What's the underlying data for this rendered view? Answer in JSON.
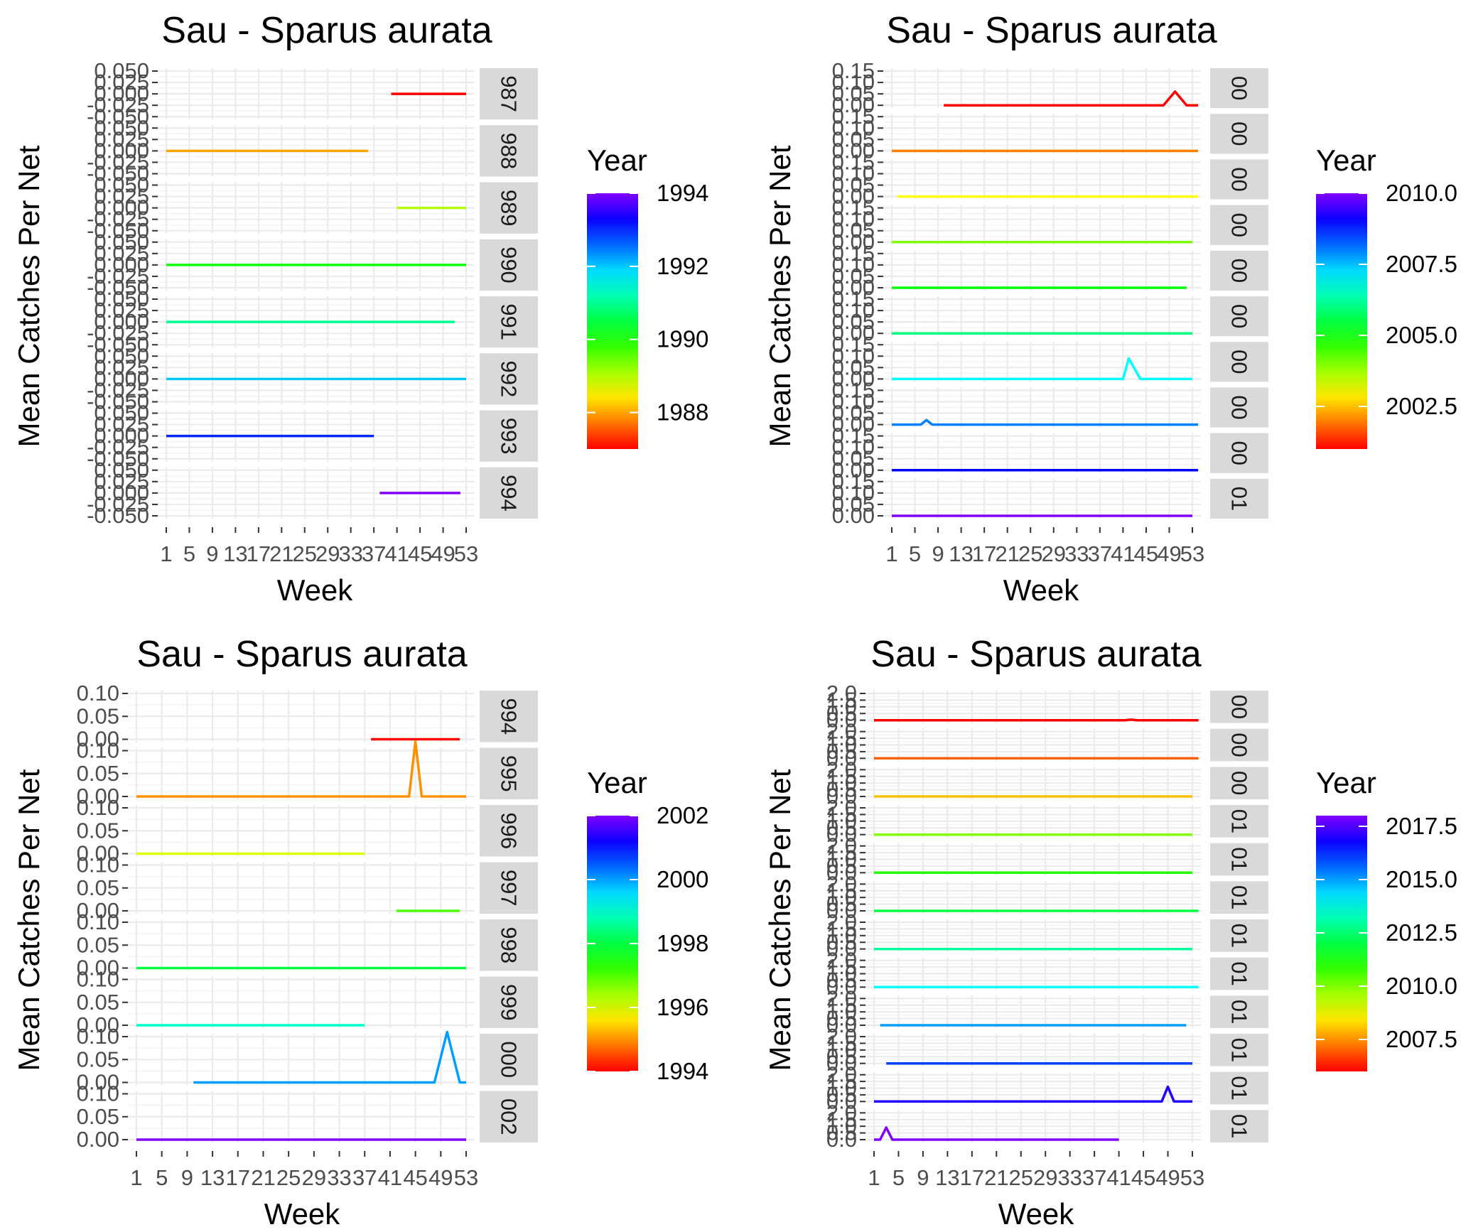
{
  "chart_data": [
    {
      "type": "line",
      "title": "Sau - Sparus aurata",
      "xlabel": "Week",
      "ylabel": "Mean Catches Per Net",
      "x_ticks": [
        "1",
        "5",
        "9",
        "13",
        "17",
        "21",
        "25",
        "29",
        "33",
        "37",
        "41",
        "45",
        "49",
        "53"
      ],
      "y_ticks": [
        "-0.050",
        "-0.025",
        "0.000",
        "0.025",
        "0.050"
      ],
      "ylim": [
        -0.05,
        0.05
      ],
      "legend_title": "Year",
      "legend_ticks": [
        "1988",
        "1990",
        "1992",
        "1994"
      ],
      "legend_range": [
        1987,
        1994
      ],
      "panels": [
        {
          "strip": "987",
          "year": 1987,
          "weeks": [
            40,
            53
          ],
          "values": [
            0,
            0
          ]
        },
        {
          "strip": "988",
          "year": 1988,
          "weeks": [
            1,
            36
          ],
          "values": [
            0,
            0
          ]
        },
        {
          "strip": "989",
          "year": 1989,
          "weeks": [
            41,
            53
          ],
          "values": [
            0,
            0
          ]
        },
        {
          "strip": "990",
          "year": 1990,
          "weeks": [
            1,
            53
          ],
          "values": [
            0,
            0
          ]
        },
        {
          "strip": "991",
          "year": 1991,
          "weeks": [
            1,
            51
          ],
          "values": [
            0,
            0
          ]
        },
        {
          "strip": "992",
          "year": 1992,
          "weeks": [
            1,
            53
          ],
          "values": [
            0,
            0
          ]
        },
        {
          "strip": "993",
          "year": 1993,
          "weeks": [
            1,
            37
          ],
          "values": [
            0,
            0
          ]
        },
        {
          "strip": "994",
          "year": 1994,
          "weeks": [
            38,
            52
          ],
          "values": [
            0,
            0
          ]
        }
      ]
    },
    {
      "type": "line",
      "title": "Sau - Sparus aurata",
      "xlabel": "Week",
      "ylabel": "Mean Catches Per Net",
      "x_ticks": [
        "1",
        "5",
        "9",
        "13",
        "17",
        "21",
        "25",
        "29",
        "33",
        "37",
        "41",
        "45",
        "49",
        "53"
      ],
      "y_ticks": [
        "0.00",
        "0.05",
        "0.10",
        "0.15"
      ],
      "ylim": [
        0,
        0.15
      ],
      "legend_title": "Year",
      "legend_ticks": [
        "2002.5",
        "2005.0",
        "2007.5",
        "2010.0"
      ],
      "legend_range": [
        2001,
        2010
      ],
      "panels": [
        {
          "strip": "00",
          "year": 2001,
          "weeks": [
            10,
            48,
            50,
            52,
            54
          ],
          "values": [
            0,
            0,
            0.06,
            0,
            0
          ]
        },
        {
          "strip": "00",
          "year": 2002,
          "weeks": [
            1,
            54
          ],
          "values": [
            0,
            0
          ]
        },
        {
          "strip": "00",
          "year": 2003,
          "weeks": [
            2,
            54
          ],
          "values": [
            0,
            0
          ]
        },
        {
          "strip": "00",
          "year": 2004,
          "weeks": [
            1,
            53
          ],
          "values": [
            0,
            0
          ]
        },
        {
          "strip": "00",
          "year": 2005,
          "weeks": [
            1,
            52
          ],
          "values": [
            0,
            0
          ]
        },
        {
          "strip": "00",
          "year": 2006,
          "weeks": [
            1,
            53
          ],
          "values": [
            0,
            0
          ]
        },
        {
          "strip": "00",
          "year": 2007,
          "weeks": [
            1,
            41,
            42,
            44,
            53
          ],
          "values": [
            0,
            0,
            0.09,
            0,
            0
          ]
        },
        {
          "strip": "00",
          "year": 2008,
          "weeks": [
            1,
            6,
            7,
            8,
            54
          ],
          "values": [
            0,
            0,
            0.02,
            0,
            0
          ]
        },
        {
          "strip": "00",
          "year": 2009,
          "weeks": [
            1,
            54
          ],
          "values": [
            0,
            0
          ]
        },
        {
          "strip": "01",
          "year": 2010,
          "weeks": [
            1,
            53
          ],
          "values": [
            0,
            0
          ]
        }
      ]
    },
    {
      "type": "line",
      "title": "Sau - Sparus aurata",
      "xlabel": "Week",
      "ylabel": "Mean Catches Per Net",
      "x_ticks": [
        "1",
        "5",
        "9",
        "13",
        "17",
        "21",
        "25",
        "29",
        "33",
        "37",
        "41",
        "45",
        "49",
        "53"
      ],
      "y_ticks": [
        "0.00",
        "0.05",
        "0.10"
      ],
      "ylim": [
        0,
        0.1
      ],
      "legend_title": "Year",
      "legend_ticks": [
        "1994",
        "1996",
        "1998",
        "2000",
        "2002"
      ],
      "legend_range": [
        1994,
        2002
      ],
      "panels": [
        {
          "strip": "994",
          "year": 1994,
          "weeks": [
            38,
            52
          ],
          "values": [
            0,
            0
          ]
        },
        {
          "strip": "995",
          "year": 1995,
          "weeks": [
            1,
            44,
            45,
            46,
            53
          ],
          "values": [
            0,
            0,
            0.12,
            0,
            0
          ]
        },
        {
          "strip": "996",
          "year": 1996,
          "weeks": [
            1,
            37
          ],
          "values": [
            0,
            0
          ]
        },
        {
          "strip": "997",
          "year": 1997,
          "weeks": [
            42,
            52
          ],
          "values": [
            0,
            0
          ]
        },
        {
          "strip": "998",
          "year": 1998,
          "weeks": [
            1,
            53
          ],
          "values": [
            0,
            0
          ]
        },
        {
          "strip": "999",
          "year": 1999,
          "weeks": [
            1,
            37
          ],
          "values": [
            0,
            0
          ]
        },
        {
          "strip": "000",
          "year": 2000,
          "weeks": [
            10,
            48,
            50,
            52,
            53
          ],
          "values": [
            0,
            0,
            0.11,
            0,
            0
          ]
        },
        {
          "strip": "002",
          "year": 2002,
          "weeks": [
            1,
            53
          ],
          "values": [
            0,
            0
          ]
        }
      ]
    },
    {
      "type": "line",
      "title": "Sau - Sparus aurata",
      "xlabel": "Week",
      "ylabel": "Mean Catches Per Net",
      "x_ticks": [
        "1",
        "5",
        "9",
        "13",
        "17",
        "21",
        "25",
        "29",
        "33",
        "37",
        "41",
        "45",
        "49",
        "53"
      ],
      "y_ticks": [
        "0.0",
        "0.5",
        "1.0",
        "1.5",
        "2.0"
      ],
      "ylim": [
        0,
        2
      ],
      "legend_title": "Year",
      "legend_ticks": [
        "2007.5",
        "2010.0",
        "2012.5",
        "2015.0",
        "2017.5"
      ],
      "legend_range": [
        2006,
        2018
      ],
      "panels": [
        {
          "strip": "00",
          "year": 2006,
          "weeks": [
            1,
            42,
            43,
            44,
            54
          ],
          "values": [
            0,
            0,
            0.04,
            0,
            0
          ]
        },
        {
          "strip": "00",
          "year": 2007,
          "weeks": [
            1,
            54
          ],
          "values": [
            0,
            0
          ]
        },
        {
          "strip": "00",
          "year": 2008,
          "weeks": [
            1,
            53
          ],
          "values": [
            0,
            0
          ]
        },
        {
          "strip": "01",
          "year": 2010,
          "weeks": [
            1,
            53
          ],
          "values": [
            0,
            0
          ]
        },
        {
          "strip": "01",
          "year": 2011,
          "weeks": [
            1,
            53
          ],
          "values": [
            0,
            0
          ]
        },
        {
          "strip": "01",
          "year": 2012,
          "weeks": [
            1,
            54
          ],
          "values": [
            0,
            0
          ]
        },
        {
          "strip": "01",
          "year": 2013,
          "weeks": [
            1,
            53
          ],
          "values": [
            0,
            0
          ]
        },
        {
          "strip": "01",
          "year": 2014,
          "weeks": [
            1,
            54
          ],
          "values": [
            0,
            0
          ]
        },
        {
          "strip": "01",
          "year": 2015,
          "weeks": [
            2,
            52
          ],
          "values": [
            0,
            0
          ]
        },
        {
          "strip": "01",
          "year": 2016,
          "weeks": [
            3,
            53
          ],
          "values": [
            0,
            0
          ]
        },
        {
          "strip": "01",
          "year": 2017,
          "weeks": [
            1,
            48,
            49,
            50,
            53
          ],
          "values": [
            0,
            0,
            1.1,
            0,
            0
          ]
        },
        {
          "strip": "01",
          "year": 2018,
          "weeks": [
            1,
            2,
            3,
            4,
            41
          ],
          "values": [
            0,
            0,
            0.9,
            0,
            0
          ]
        }
      ]
    }
  ]
}
